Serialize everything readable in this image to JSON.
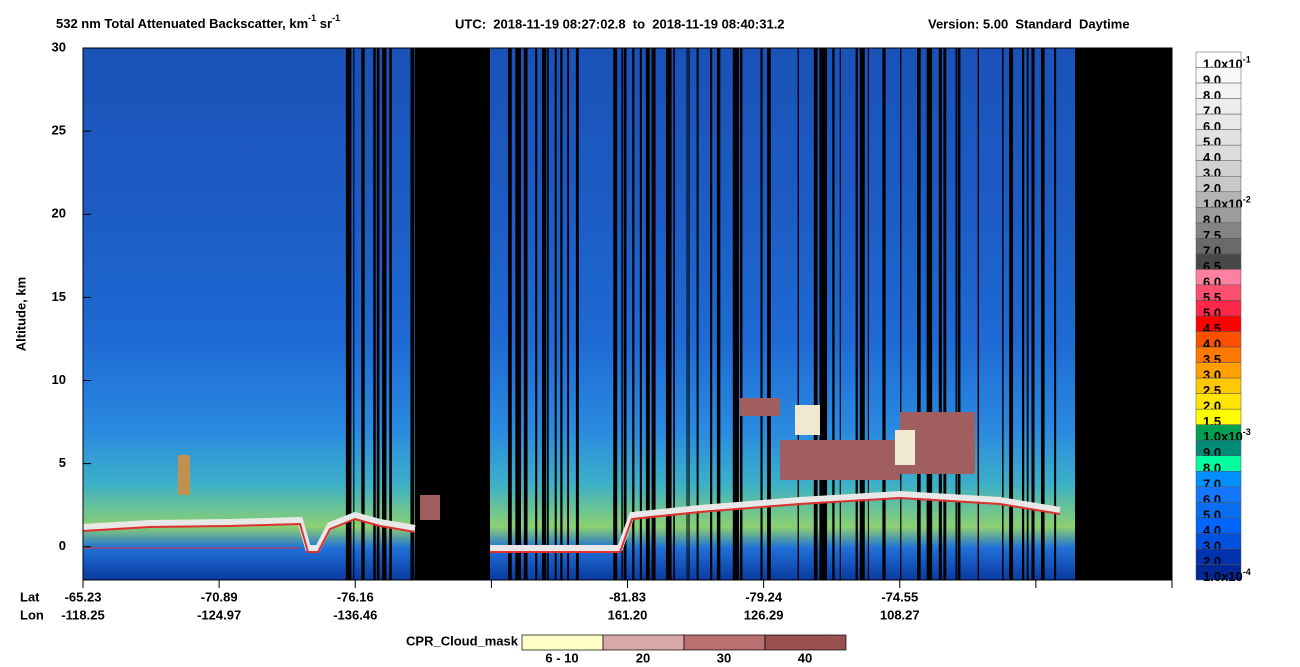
{
  "chart_data": {
    "type": "curtain",
    "title": {
      "parts": [
        "532 nm Total Attenuated Backscatter, km",
        " sr"
      ],
      "exponents": [
        "-1",
        "-1"
      ]
    },
    "utc": "UTC:  2018-11-19 08:27:02.8  to  2018-11-19 08:40:31.2",
    "version": "Version: 5.00  Standard  Daytime",
    "ylabel": "Altitude, km",
    "ylim": [
      -2,
      30
    ],
    "yticks": [
      0,
      5,
      10,
      15,
      20,
      25,
      30
    ],
    "x_rows": [
      {
        "name": "Lat",
        "labels": [
          "-65.23",
          "-70.89",
          "-76.16",
          null,
          "-81.83",
          "-79.24",
          "-74.55",
          null,
          null
        ]
      },
      {
        "name": "Lon",
        "labels": [
          "-118.25",
          "-124.97",
          "-136.46",
          null,
          "161.20",
          "126.29",
          "108.27",
          null,
          null
        ]
      }
    ],
    "colorbar": {
      "labels": [
        {
          "base": "1.0x10",
          "exp": "-1"
        },
        "9.0",
        "8.0",
        "7.0",
        "6.0",
        "5.0",
        "4.0",
        "3.0",
        "2.0",
        {
          "base": "1.0x10",
          "exp": "-2"
        },
        "8.0",
        "7.5",
        "7.0",
        "6.5",
        "6.0",
        "5.5",
        "5.0",
        "4.5",
        "4.0",
        "3.5",
        "3.0",
        "2.5",
        "2.0",
        "1.5",
        {
          "base": "1.0x10",
          "exp": "-3"
        },
        "9.0",
        "8.0",
        "7.0",
        "6.0",
        "5.0",
        "4.0",
        "3.0",
        "2.0",
        {
          "base": "1.0x10",
          "exp": "-4"
        }
      ],
      "colors": [
        "#ffffff",
        "#fafafa",
        "#f4f4f4",
        "#eeeeee",
        "#e8e8e8",
        "#e2e2e2",
        "#dcdcdc",
        "#d2d2d2",
        "#c8c8c8",
        "#b4b4b4",
        "#9c9c9c",
        "#848484",
        "#6a6a6a",
        "#484848",
        "#ff80a0",
        "#ff5070",
        "#ff2848",
        "#ff0000",
        "#ff5000",
        "#ff7800",
        "#ffa000",
        "#ffc800",
        "#ffe600",
        "#ffff00",
        "#00a050",
        "#008c78",
        "#00ffa0",
        "#0090ff",
        "#1478ff",
        "#0a6ef0",
        "#0064ff",
        "#0050e0",
        "#0032b0",
        "#002896"
      ]
    },
    "cloud_mask": {
      "title": "CPR_Cloud_mask",
      "labels": [
        "6 - 10",
        "20",
        "30",
        "40"
      ],
      "colors": [
        "#ffffc8",
        "#d8a8a8",
        "#b87070",
        "#985050"
      ]
    }
  }
}
